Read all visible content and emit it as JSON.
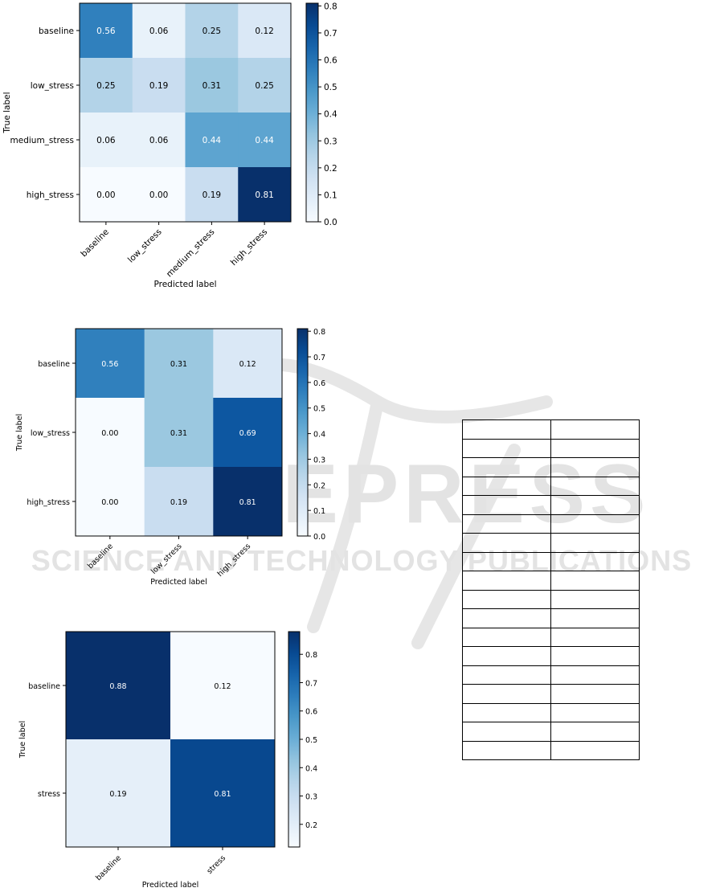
{
  "watermark": {
    "big_text": "SCITEPRESS",
    "sub_text": "SCIENCE AND TECHNOLOGY PUBLICATIONS",
    "color": "#e3e3e3"
  },
  "colors": {
    "blues_low": "#f7fbff",
    "blues_high": "#08306b",
    "text_dark": "#000000",
    "text_light": "#ffffff"
  },
  "chart_data": [
    {
      "type": "heatmap",
      "xlabel": "Predicted label",
      "ylabel": "True label",
      "x_categories": [
        "baseline",
        "low_stress",
        "medium_stress",
        "high_stress"
      ],
      "y_categories": [
        "baseline",
        "low_stress",
        "medium_stress",
        "high_stress"
      ],
      "values": [
        [
          0.56,
          0.06,
          0.25,
          0.12
        ],
        [
          0.25,
          0.19,
          0.31,
          0.25
        ],
        [
          0.06,
          0.06,
          0.44,
          0.44
        ],
        [
          0.0,
          0.0,
          0.19,
          0.81
        ]
      ],
      "value_labels": [
        [
          "0.56",
          "0.06",
          "0.25",
          "0.12"
        ],
        [
          "0.25",
          "0.19",
          "0.31",
          "0.25"
        ],
        [
          "0.06",
          "0.06",
          "0.44",
          "0.44"
        ],
        [
          "0.00",
          "0.00",
          "0.19",
          "0.81"
        ]
      ],
      "colorbar": {
        "min": 0.0,
        "max": 0.81,
        "ticks": [
          "0.0",
          "0.1",
          "0.2",
          "0.3",
          "0.4",
          "0.5",
          "0.6",
          "0.7",
          "0.8"
        ]
      },
      "colormap": "Blues"
    },
    {
      "type": "heatmap",
      "xlabel": "Predicted label",
      "ylabel": "True label",
      "x_categories": [
        "baseline",
        "low_stress",
        "high_stress"
      ],
      "y_categories": [
        "baseline",
        "low_stress",
        "high_stress"
      ],
      "values": [
        [
          0.56,
          0.31,
          0.12
        ],
        [
          0.0,
          0.31,
          0.69
        ],
        [
          0.0,
          0.19,
          0.81
        ]
      ],
      "value_labels": [
        [
          "0.56",
          "0.31",
          "0.12"
        ],
        [
          "0.00",
          "0.31",
          "0.69"
        ],
        [
          "0.00",
          "0.19",
          "0.81"
        ]
      ],
      "colorbar": {
        "min": 0.0,
        "max": 0.81,
        "ticks": [
          "0.0",
          "0.1",
          "0.2",
          "0.3",
          "0.4",
          "0.5",
          "0.6",
          "0.7",
          "0.8"
        ]
      },
      "colormap": "Blues"
    },
    {
      "type": "heatmap",
      "xlabel": "Predicted label",
      "ylabel": "True label",
      "x_categories": [
        "baseline",
        "stress"
      ],
      "y_categories": [
        "baseline",
        "stress"
      ],
      "values": [
        [
          0.88,
          0.12
        ],
        [
          0.19,
          0.81
        ]
      ],
      "value_labels": [
        [
          "0.88",
          "0.12"
        ],
        [
          "0.19",
          "0.81"
        ]
      ],
      "colorbar": {
        "min": 0.12,
        "max": 0.88,
        "ticks": [
          "0.2",
          "0.3",
          "0.4",
          "0.5",
          "0.6",
          "0.7",
          "0.8"
        ]
      },
      "colormap": "Blues"
    }
  ],
  "table": {
    "rows": 18,
    "cols": 2
  }
}
